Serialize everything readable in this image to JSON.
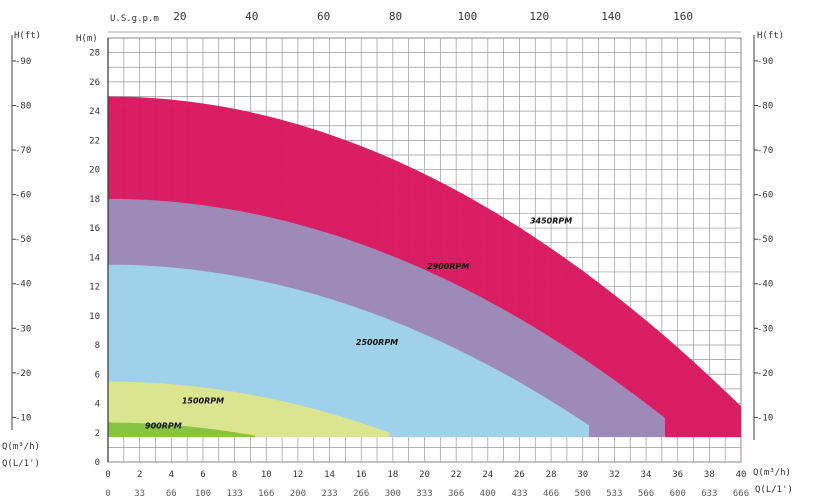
{
  "chart_data": {
    "type": "area",
    "title": "",
    "x": {
      "label": "Q(m³/h)",
      "min": 0,
      "max": 40,
      "ticks": [
        0,
        2,
        4,
        6,
        8,
        10,
        12,
        14,
        16,
        18,
        20,
        22,
        24,
        26,
        28,
        30,
        32,
        34,
        36,
        38,
        40
      ],
      "tick_labels": [
        "0",
        "2",
        "4",
        "6",
        "8",
        "10",
        "12",
        "14",
        "16",
        "18",
        "20",
        "22",
        "24",
        "26",
        "28",
        "30",
        "32",
        "34",
        "36",
        "38",
        "40"
      ]
    },
    "x_bottom_secondary": {
      "label": "Q(L/1')",
      "tick_labels": [
        "0",
        "33",
        "66",
        "100",
        "133",
        "166",
        "200",
        "233",
        "266",
        "300",
        "333",
        "366",
        "400",
        "433",
        "466",
        "500",
        "533",
        "566",
        "600",
        "633",
        "666"
      ]
    },
    "x_top": {
      "label": "U.S.g.p.m",
      "ticks": [
        20,
        40,
        60,
        80,
        100,
        120,
        140,
        160
      ],
      "tick_labels": [
        "20",
        "40",
        "60",
        "80",
        "100",
        "120",
        "140",
        "160"
      ]
    },
    "y": {
      "label": "H(m)",
      "min": 0,
      "max": 29,
      "ticks": [
        0,
        2,
        4,
        6,
        8,
        10,
        12,
        14,
        16,
        18,
        20,
        22,
        24,
        26,
        28
      ],
      "tick_labels": [
        "0",
        "2",
        "4",
        "6",
        "8",
        "10",
        "12",
        "14",
        "16",
        "18",
        "20",
        "22",
        "24",
        "26",
        "28"
      ]
    },
    "y_left_outer": {
      "label": "H(ft)",
      "tick_labels": [
        "-10",
        "-20",
        "-30",
        "-40",
        "-50",
        "-60",
        "-70",
        "-80",
        "-90"
      ]
    },
    "y_right": {
      "label": "H(ft)",
      "tick_labels": [
        "-10",
        "-20",
        "-30",
        "-40",
        "-50",
        "-60",
        "-70",
        "-80",
        "-90"
      ]
    },
    "grid": true,
    "bands": [
      {
        "name": "3450RPM",
        "color": "#d9175f",
        "q_max": 40.0,
        "h_max": 25.0,
        "h_min": 3.8
      },
      {
        "name": "2900RPM",
        "color": "#9c8dbb",
        "q_max": 35.2,
        "h_max": 18.0,
        "h_min": 3.0
      },
      {
        "name": "2500RPM",
        "color": "#9fd4ec",
        "q_max": 30.4,
        "h_max": 13.5,
        "h_min": 2.5
      },
      {
        "name": "1500RPM",
        "color": "#dde58c",
        "q_max": 17.8,
        "h_max": 5.5,
        "h_min": 2.0
      },
      {
        "name": "900RPM",
        "color": "#86c141",
        "q_max": 9.3,
        "h_max": 2.7,
        "h_min": 1.8
      }
    ]
  }
}
